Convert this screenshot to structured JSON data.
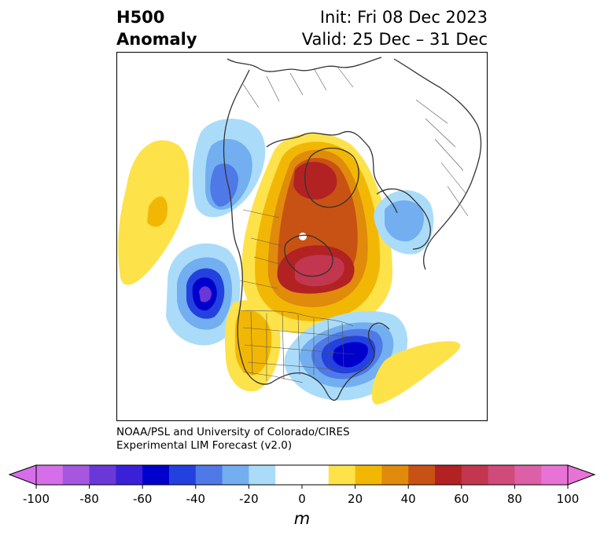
{
  "title": {
    "line1_left": "H500",
    "line2_left": "Anomaly",
    "line1_right": "Init: Fri 08 Dec 2023",
    "line2_right": "Valid: 25 Dec – 31 Dec"
  },
  "credit": {
    "line1": "NOAA/PSL and University of Colorado/CIRES",
    "line2": "Experimental LIM Forecast (v2.0)"
  },
  "colorbar": {
    "unit": "m",
    "ticks": [
      "-100",
      "-80",
      "-60",
      "-40",
      "-20",
      "0",
      "20",
      "40",
      "60",
      "80",
      "100"
    ],
    "bins": [
      {
        "range": "-100 to -90",
        "color": "#d56ee8"
      },
      {
        "range": "-90 to -80",
        "color": "#a657e0"
      },
      {
        "range": "-80 to -70",
        "color": "#6a37d9"
      },
      {
        "range": "-70 to -60",
        "color": "#3a20d6"
      },
      {
        "range": "-60 to -50",
        "color": "#0000cc"
      },
      {
        "range": "-50 to -40",
        "color": "#2341de"
      },
      {
        "range": "-40 to -30",
        "color": "#4f79e6"
      },
      {
        "range": "-30 to -20",
        "color": "#72aef0"
      },
      {
        "range": "-20 to -10",
        "color": "#aadcfa"
      },
      {
        "range": "-10 to 0",
        "color": "#ffffff"
      },
      {
        "range": "0 to 10",
        "color": "#ffffff"
      },
      {
        "range": "10 to 20",
        "color": "#fde24a"
      },
      {
        "range": "20 to 30",
        "color": "#f2b705"
      },
      {
        "range": "30 to 40",
        "color": "#e08b0b"
      },
      {
        "range": "40 to 50",
        "color": "#c85214"
      },
      {
        "range": "50 to 60",
        "color": "#b22222"
      },
      {
        "range": "60 to 70",
        "color": "#c3364f"
      },
      {
        "range": "70 to 80",
        "color": "#d04a7a"
      },
      {
        "range": "80 to 90",
        "color": "#dc5fa8"
      },
      {
        "range": "90 to 100",
        "color": "#e873d6"
      }
    ],
    "extend_colors": {
      "low": "#d56ee8",
      "high": "#e873d6"
    }
  },
  "map": {
    "projection": "polar stereographic, North America / North Atlantic",
    "anomaly_centers": [
      {
        "region": "Greenland / Arctic",
        "sign": "positive",
        "approx_value_m": 60
      },
      {
        "region": "Hudson Bay / central Canada",
        "sign": "positive",
        "approx_value_m": 70
      },
      {
        "region": "Western Canada / Rockies",
        "sign": "positive",
        "approx_value_m": 30
      },
      {
        "region": "Eastern Pacific (NE of Hawaii)",
        "sign": "negative",
        "approx_value_m": -80
      },
      {
        "region": "Eastern US / western Atlantic",
        "sign": "negative",
        "approx_value_m": -60
      },
      {
        "region": "Northern Scandinavia / Europe",
        "sign": "negative",
        "approx_value_m": -30
      },
      {
        "region": "Northern Siberia / Bering Strait",
        "sign": "negative",
        "approx_value_m": -40
      },
      {
        "region": "North Pacific",
        "sign": "positive",
        "approx_value_m": 20
      },
      {
        "region": "Central Atlantic",
        "sign": "positive",
        "approx_value_m": 10
      }
    ]
  }
}
